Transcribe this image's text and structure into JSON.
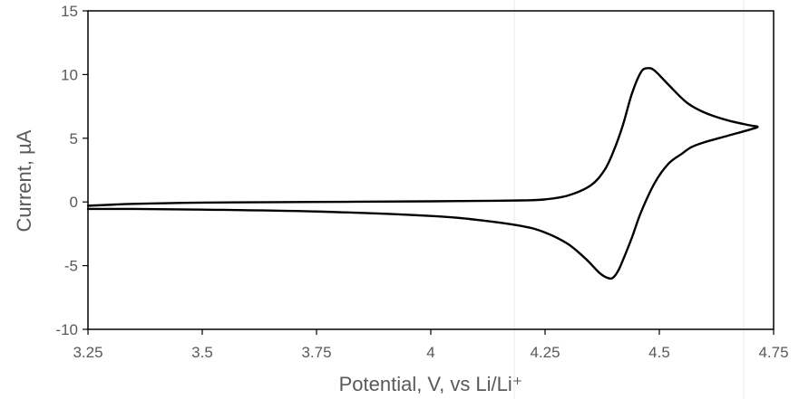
{
  "chart_data": {
    "type": "line",
    "title": "",
    "xlabel": "Potential, V, vs Li/Li⁺",
    "ylabel": "Current, µA",
    "xlim": [
      3.25,
      4.75
    ],
    "ylim": [
      -10,
      15
    ],
    "xticks": [
      3.25,
      3.5,
      3.75,
      4.0,
      4.25,
      4.5,
      4.75
    ],
    "xtick_labels": [
      "3.25",
      "3.5",
      "3.75",
      "4",
      "4.25",
      "4.5",
      "4.75"
    ],
    "yticks": [
      -10,
      -5,
      0,
      5,
      10,
      15
    ],
    "ytick_labels": [
      "-10",
      "-5",
      "0",
      "5",
      "10",
      "15"
    ],
    "grid": false,
    "legend": "none",
    "series": [
      {
        "color": "#000000",
        "x": [
          3.25,
          3.35,
          3.5,
          3.75,
          4.0,
          4.1,
          4.2,
          4.25,
          4.3,
          4.35,
          4.38,
          4.4,
          4.42,
          4.44,
          4.46,
          4.475,
          4.49,
          4.52,
          4.56,
          4.6,
          4.65,
          4.7,
          4.715,
          4.7,
          4.65,
          4.6,
          4.57,
          4.55,
          4.52,
          4.49,
          4.46,
          4.44,
          4.42,
          4.41,
          4.4,
          4.39,
          4.37,
          4.34,
          4.3,
          4.25,
          4.2,
          4.1,
          4.0,
          3.75,
          3.5,
          3.35,
          3.25
        ],
        "y": [
          -0.3,
          -0.15,
          -0.05,
          0.0,
          0.05,
          0.08,
          0.12,
          0.2,
          0.5,
          1.3,
          2.5,
          4.0,
          6.0,
          8.5,
          10.2,
          10.5,
          10.3,
          9.2,
          7.8,
          7.0,
          6.4,
          6.0,
          5.9,
          5.7,
          5.2,
          4.7,
          4.3,
          3.8,
          3.0,
          1.5,
          -0.8,
          -2.8,
          -4.6,
          -5.4,
          -5.9,
          -6.0,
          -5.6,
          -4.5,
          -3.3,
          -2.4,
          -1.9,
          -1.4,
          -1.1,
          -0.75,
          -0.6,
          -0.55,
          -0.55
        ]
      }
    ]
  }
}
